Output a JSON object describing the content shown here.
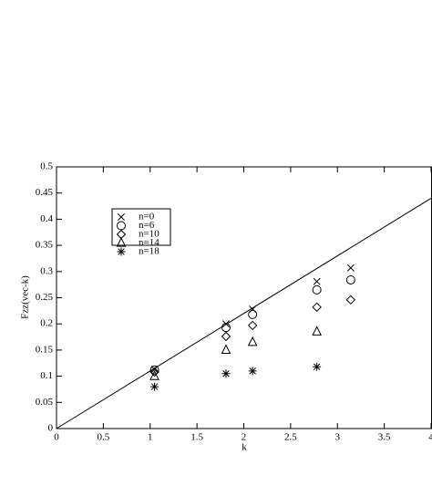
{
  "chart_data": {
    "type": "scatter",
    "xlabel": "k",
    "ylabel": "Fzz(vec-k)",
    "xlim": [
      0,
      4
    ],
    "ylim": [
      0,
      0.5
    ],
    "xticks": [
      0,
      0.5,
      1,
      1.5,
      2,
      2.5,
      3,
      3.5,
      4
    ],
    "yticks": [
      0,
      0.05,
      0.1,
      0.15,
      0.2,
      0.25,
      0.3,
      0.35,
      0.4,
      0.45,
      0.5
    ],
    "legend": "upper left",
    "series": [
      {
        "name": "n=0",
        "marker": "x",
        "color": "#000000",
        "x": [
          1.047,
          1.81,
          2.094,
          2.78,
          3.142
        ],
        "values": [
          0.113,
          0.2,
          0.228,
          0.281,
          0.307
        ]
      },
      {
        "name": "n=6",
        "marker": "circle",
        "color": "#000000",
        "x": [
          1.047,
          1.81,
          2.094,
          2.78,
          3.142
        ],
        "values": [
          0.112,
          0.193,
          0.218,
          0.265,
          0.284
        ]
      },
      {
        "name": "n=10",
        "marker": "diamond",
        "color": "#000000",
        "x": [
          1.047,
          1.81,
          2.094,
          2.78,
          3.142
        ],
        "values": [
          0.108,
          0.176,
          0.197,
          0.232,
          0.246
        ]
      },
      {
        "name": "n=14",
        "marker": "triangle",
        "color": "#000000",
        "x": [
          1.047,
          1.81,
          2.094,
          2.78
        ],
        "values": [
          0.1,
          0.15,
          0.165,
          0.185
        ]
      },
      {
        "name": "n=18",
        "marker": "star",
        "color": "#000000",
        "x": [
          1.047,
          1.81,
          2.094,
          2.78
        ],
        "values": [
          0.08,
          0.105,
          0.11,
          0.118
        ]
      },
      {
        "marker": "line",
        "color": "#000000",
        "x": [
          0,
          4
        ],
        "values": [
          0,
          0.44
        ]
      }
    ]
  }
}
